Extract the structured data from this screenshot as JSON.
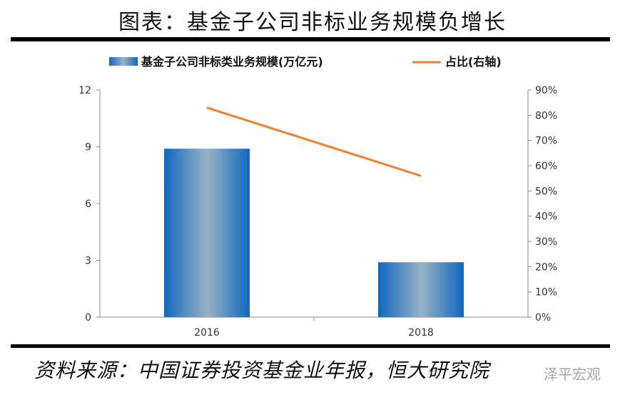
{
  "title": "图表：基金子公司非标业务规模负增长",
  "source": "资料来源：中国证券投资基金业年报，恒大研究院",
  "watermark": "泽平宏观",
  "chart_data": {
    "type": "bar",
    "categories": [
      "2016",
      "2018"
    ],
    "series": [
      {
        "name": "基金子公司非标类业务规模(万亿元)",
        "type": "bar",
        "axis": "left",
        "values": [
          8.9,
          2.9
        ],
        "color": "#1F6FBF"
      },
      {
        "name": "占比(右轴)",
        "type": "line",
        "axis": "right",
        "values": [
          83,
          56
        ],
        "color": "#F08030"
      }
    ],
    "ylim": [
      0,
      12
    ],
    "yticks": [
      "0",
      "3",
      "6",
      "9",
      "12"
    ],
    "y2lim": [
      0,
      90
    ],
    "y2ticks": [
      "0%",
      "10%",
      "20%",
      "30%",
      "40%",
      "50%",
      "60%",
      "70%",
      "80%",
      "90%"
    ],
    "legend": "top-center",
    "grid": false
  }
}
